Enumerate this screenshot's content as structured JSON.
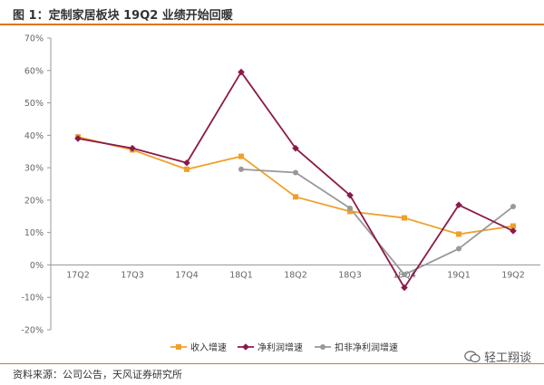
{
  "header": {
    "title": "图 1：定制家居板块 19Q2 业绩开始回暖"
  },
  "footer": {
    "source": "资料来源：公司公告，天风证券研究所",
    "watermark": "轻工翔谈",
    "watermark_icon": "wechat-chat-icon"
  },
  "colors": {
    "accent_rule": "#e0731e",
    "revenue": "#f0a02a",
    "net_profit": "#8b1a4a",
    "deducted_net_profit": "#999999",
    "axis": "#999999",
    "tick_text": "#666666"
  },
  "chart_data": {
    "type": "line",
    "title": "",
    "xlabel": "",
    "ylabel": "",
    "x": [
      "17Q2",
      "17Q3",
      "17Q4",
      "18Q1",
      "18Q2",
      "18Q3",
      "18Q4",
      "19Q1",
      "19Q2"
    ],
    "ylim": [
      -20,
      70
    ],
    "yticks": [
      70,
      60,
      50,
      40,
      30,
      20,
      10,
      0,
      -10,
      -20
    ],
    "ytick_labels": [
      "70%",
      "60%",
      "50%",
      "40%",
      "30%",
      "20%",
      "10%",
      "0%",
      "-10%",
      "-20%"
    ],
    "grid": false,
    "legend_position": "bottom",
    "series": [
      {
        "name": "收入增速",
        "color": "#f0a02a",
        "marker": "square",
        "values": [
          39.5,
          35.5,
          29.5,
          33.5,
          21.0,
          16.5,
          14.5,
          9.5,
          12.0
        ]
      },
      {
        "name": "净利润增速",
        "color": "#8b1a4a",
        "marker": "diamond",
        "values": [
          39.0,
          36.0,
          31.5,
          59.5,
          36.0,
          21.5,
          -7.0,
          18.5,
          10.5
        ]
      },
      {
        "name": "扣非净利润增速",
        "color": "#999999",
        "marker": "circle",
        "values": [
          null,
          null,
          null,
          29.5,
          28.5,
          17.5,
          -3.0,
          5.0,
          18.0
        ]
      }
    ]
  }
}
